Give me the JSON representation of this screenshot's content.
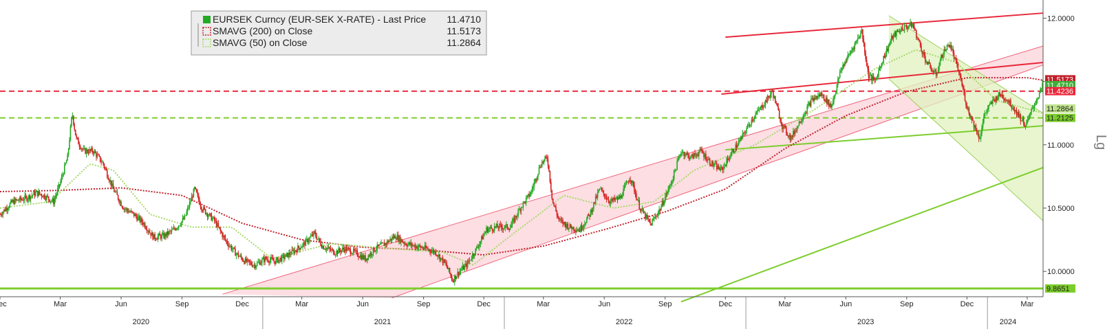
{
  "chart_data": {
    "type": "candlestick",
    "legend": {
      "placement": "top-left",
      "entries": [
        {
          "label": "EURSEK Curncy (EUR-SEK X-RATE) - Last Price",
          "value": "11.4710",
          "color": "#22aa22",
          "marker": "solid-square"
        },
        {
          "label": "SMAVG (200)  on Close",
          "value": "11.5173",
          "color": "#c0202a",
          "marker": "dotted-square"
        },
        {
          "label": "SMAVG (50)  on Close",
          "value": "11.2864",
          "color": "#a8d86a",
          "marker": "dotted-square"
        }
      ]
    },
    "y_axis": {
      "position": "right",
      "range": [
        9.8,
        12.1
      ],
      "ticks": [
        "10.0000",
        "10.5000",
        "11.0000",
        "11.5000",
        "12.0000"
      ],
      "tick_values": [
        10.0,
        10.5,
        11.0,
        11.5,
        12.0
      ]
    },
    "x_axis": {
      "start": "2019-12-01",
      "end": "2024-03-25",
      "month_ticks": [
        {
          "label": "Dec",
          "date": "2019-12-01"
        },
        {
          "label": "Mar",
          "date": "2020-03-01"
        },
        {
          "label": "Jun",
          "date": "2020-06-01"
        },
        {
          "label": "Sep",
          "date": "2020-09-01"
        },
        {
          "label": "Dec",
          "date": "2020-12-01"
        },
        {
          "label": "Mar",
          "date": "2021-03-01"
        },
        {
          "label": "Jun",
          "date": "2021-06-01"
        },
        {
          "label": "Sep",
          "date": "2021-09-01"
        },
        {
          "label": "Dec",
          "date": "2021-12-01"
        },
        {
          "label": "Mar",
          "date": "2022-03-01"
        },
        {
          "label": "Jun",
          "date": "2022-06-01"
        },
        {
          "label": "Sep",
          "date": "2022-09-01"
        },
        {
          "label": "Dec",
          "date": "2022-12-01"
        },
        {
          "label": "Mar",
          "date": "2023-03-01"
        },
        {
          "label": "Jun",
          "date": "2023-06-01"
        },
        {
          "label": "Sep",
          "date": "2023-09-01"
        },
        {
          "label": "Dec",
          "date": "2023-12-01"
        },
        {
          "label": "Mar",
          "date": "2024-03-01"
        }
      ],
      "year_labels": [
        {
          "label": "2020",
          "date": "2020-07-01"
        },
        {
          "label": "2021",
          "date": "2021-07-01"
        },
        {
          "label": "2022",
          "date": "2022-07-01"
        },
        {
          "label": "2023",
          "date": "2023-07-01"
        },
        {
          "label": "2024",
          "date": "2024-02-01"
        }
      ],
      "year_separators": [
        "2021-01-01",
        "2022-01-01",
        "2023-01-01",
        "2024-01-01"
      ]
    },
    "price_path": [
      [
        "2019-12-01",
        10.45
      ],
      [
        "2019-12-20",
        10.55
      ],
      [
        "2020-01-10",
        10.58
      ],
      [
        "2020-01-25",
        10.62
      ],
      [
        "2020-02-05",
        10.6
      ],
      [
        "2020-02-20",
        10.55
      ],
      [
        "2020-03-01",
        10.7
      ],
      [
        "2020-03-12",
        10.9
      ],
      [
        "2020-03-19",
        11.25
      ],
      [
        "2020-03-25",
        11.05
      ],
      [
        "2020-04-05",
        10.95
      ],
      [
        "2020-04-20",
        10.95
      ],
      [
        "2020-05-05",
        10.85
      ],
      [
        "2020-05-20",
        10.65
      ],
      [
        "2020-06-05",
        10.5
      ],
      [
        "2020-06-20",
        10.45
      ],
      [
        "2020-07-05",
        10.38
      ],
      [
        "2020-07-20",
        10.27
      ],
      [
        "2020-08-05",
        10.28
      ],
      [
        "2020-08-20",
        10.33
      ],
      [
        "2020-09-05",
        10.42
      ],
      [
        "2020-09-20",
        10.65
      ],
      [
        "2020-10-01",
        10.5
      ],
      [
        "2020-10-20",
        10.4
      ],
      [
        "2020-11-05",
        10.25
      ],
      [
        "2020-11-20",
        10.15
      ],
      [
        "2020-12-05",
        10.08
      ],
      [
        "2020-12-20",
        10.05
      ],
      [
        "2021-01-05",
        10.1
      ],
      [
        "2021-01-20",
        10.08
      ],
      [
        "2021-02-05",
        10.12
      ],
      [
        "2021-02-20",
        10.17
      ],
      [
        "2021-03-05",
        10.22
      ],
      [
        "2021-03-20",
        10.3
      ],
      [
        "2021-04-01",
        10.2
      ],
      [
        "2021-04-20",
        10.15
      ],
      [
        "2021-05-05",
        10.18
      ],
      [
        "2021-05-20",
        10.15
      ],
      [
        "2021-06-05",
        10.1
      ],
      [
        "2021-06-20",
        10.18
      ],
      [
        "2021-07-05",
        10.22
      ],
      [
        "2021-07-20",
        10.28
      ],
      [
        "2021-08-05",
        10.22
      ],
      [
        "2021-08-20",
        10.2
      ],
      [
        "2021-09-05",
        10.18
      ],
      [
        "2021-09-20",
        10.15
      ],
      [
        "2021-10-05",
        10.05
      ],
      [
        "2021-10-15",
        9.93
      ],
      [
        "2021-10-25",
        10.0
      ],
      [
        "2021-11-05",
        10.05
      ],
      [
        "2021-11-20",
        10.18
      ],
      [
        "2021-12-05",
        10.33
      ],
      [
        "2021-12-20",
        10.35
      ],
      [
        "2022-01-10",
        10.35
      ],
      [
        "2022-01-25",
        10.5
      ],
      [
        "2022-02-10",
        10.62
      ],
      [
        "2022-02-25",
        10.85
      ],
      [
        "2022-03-07",
        10.9
      ],
      [
        "2022-03-15",
        10.55
      ],
      [
        "2022-03-25",
        10.4
      ],
      [
        "2022-04-10",
        10.35
      ],
      [
        "2022-04-25",
        10.33
      ],
      [
        "2022-05-10",
        10.45
      ],
      [
        "2022-05-25",
        10.65
      ],
      [
        "2022-06-10",
        10.55
      ],
      [
        "2022-06-25",
        10.58
      ],
      [
        "2022-07-10",
        10.75
      ],
      [
        "2022-07-25",
        10.5
      ],
      [
        "2022-08-10",
        10.37
      ],
      [
        "2022-08-25",
        10.5
      ],
      [
        "2022-09-10",
        10.7
      ],
      [
        "2022-09-25",
        10.95
      ],
      [
        "2022-10-10",
        10.9
      ],
      [
        "2022-10-25",
        10.95
      ],
      [
        "2022-11-10",
        10.85
      ],
      [
        "2022-11-25",
        10.8
      ],
      [
        "2022-12-10",
        10.93
      ],
      [
        "2022-12-25",
        11.05
      ],
      [
        "2023-01-10",
        11.2
      ],
      [
        "2023-01-25",
        11.3
      ],
      [
        "2023-02-10",
        11.42
      ],
      [
        "2023-02-25",
        11.15
      ],
      [
        "2023-03-10",
        11.05
      ],
      [
        "2023-03-25",
        11.2
      ],
      [
        "2023-04-10",
        11.35
      ],
      [
        "2023-04-25",
        11.4
      ],
      [
        "2023-05-10",
        11.3
      ],
      [
        "2023-05-25",
        11.6
      ],
      [
        "2023-06-10",
        11.75
      ],
      [
        "2023-06-25",
        11.9
      ],
      [
        "2023-07-05",
        11.55
      ],
      [
        "2023-07-15",
        11.5
      ],
      [
        "2023-07-25",
        11.65
      ],
      [
        "2023-08-10",
        11.85
      ],
      [
        "2023-08-25",
        11.92
      ],
      [
        "2023-09-10",
        11.95
      ],
      [
        "2023-09-20",
        11.8
      ],
      [
        "2023-10-01",
        11.65
      ],
      [
        "2023-10-15",
        11.55
      ],
      [
        "2023-10-25",
        11.72
      ],
      [
        "2023-11-05",
        11.8
      ],
      [
        "2023-11-20",
        11.55
      ],
      [
        "2023-12-01",
        11.3
      ],
      [
        "2023-12-10",
        11.18
      ],
      [
        "2023-12-20",
        11.05
      ],
      [
        "2023-12-28",
        11.25
      ],
      [
        "2024-01-10",
        11.35
      ],
      [
        "2024-01-20",
        11.4
      ],
      [
        "2024-02-01",
        11.35
      ],
      [
        "2024-02-15",
        11.25
      ],
      [
        "2024-02-28",
        11.15
      ],
      [
        "2024-03-10",
        11.3
      ],
      [
        "2024-03-25",
        11.47
      ]
    ],
    "sma200_path": [
      [
        "2019-12-01",
        10.63
      ],
      [
        "2020-03-01",
        10.64
      ],
      [
        "2020-06-01",
        10.66
      ],
      [
        "2020-09-01",
        10.6
      ],
      [
        "2020-12-01",
        10.38
      ],
      [
        "2021-03-01",
        10.25
      ],
      [
        "2021-06-01",
        10.19
      ],
      [
        "2021-09-01",
        10.17
      ],
      [
        "2021-12-01",
        10.13
      ],
      [
        "2022-03-01",
        10.2
      ],
      [
        "2022-06-01",
        10.33
      ],
      [
        "2022-09-01",
        10.47
      ],
      [
        "2022-12-01",
        10.65
      ],
      [
        "2023-03-01",
        10.97
      ],
      [
        "2023-06-01",
        11.23
      ],
      [
        "2023-09-01",
        11.42
      ],
      [
        "2023-12-01",
        11.53
      ],
      [
        "2024-03-01",
        11.53
      ],
      [
        "2024-03-25",
        11.51
      ]
    ],
    "sma50_path": [
      [
        "2019-12-01",
        10.5
      ],
      [
        "2020-02-15",
        10.55
      ],
      [
        "2020-04-15",
        10.85
      ],
      [
        "2020-05-20",
        10.8
      ],
      [
        "2020-07-15",
        10.45
      ],
      [
        "2020-09-15",
        10.35
      ],
      [
        "2020-11-15",
        10.35
      ],
      [
        "2021-01-15",
        10.1
      ],
      [
        "2021-04-15",
        10.22
      ],
      [
        "2021-07-15",
        10.18
      ],
      [
        "2021-10-01",
        10.15
      ],
      [
        "2021-11-15",
        10.05
      ],
      [
        "2022-01-15",
        10.3
      ],
      [
        "2022-04-01",
        10.6
      ],
      [
        "2022-06-15",
        10.5
      ],
      [
        "2022-08-15",
        10.55
      ],
      [
        "2022-10-15",
        10.8
      ],
      [
        "2023-01-15",
        11.0
      ],
      [
        "2023-04-15",
        11.28
      ],
      [
        "2023-07-15",
        11.6
      ],
      [
        "2023-09-15",
        11.75
      ],
      [
        "2023-11-15",
        11.65
      ],
      [
        "2024-01-15",
        11.35
      ],
      [
        "2024-03-25",
        11.25
      ]
    ],
    "horizontal_lines": [
      {
        "value": 11.4236,
        "style": "dashed",
        "color": "#e8283a"
      },
      {
        "value": 11.2125,
        "style": "dashed",
        "color": "#7ccd2c"
      },
      {
        "value": 9.8651,
        "style": "solid",
        "color": "#7ccd2c"
      }
    ],
    "trend_lines": [
      {
        "color": "#e8283a",
        "from": [
          "2022-12-01",
          11.85
        ],
        "to": [
          "2024-03-25",
          12.04
        ]
      },
      {
        "color": "#e8283a",
        "from": [
          "2022-11-25",
          11.4
        ],
        "to": [
          "2024-03-25",
          11.65
        ]
      },
      {
        "color": "#7ccd2c",
        "from": [
          "2022-12-01",
          10.96
        ],
        "to": [
          "2024-03-25",
          11.15
        ]
      },
      {
        "color": "#7ccd2c",
        "from": [
          "2022-09-25",
          9.76
        ],
        "to": [
          "2024-03-25",
          10.82
        ]
      }
    ],
    "channels": [
      {
        "name": "rising",
        "fill": "#fbd3da",
        "edge": "#f0677c",
        "upper": [
          [
            "2020-11-01",
            9.82
          ],
          [
            "2024-03-25",
            11.78
          ]
        ],
        "lower": [
          [
            "2021-07-15",
            9.79
          ],
          [
            "2024-03-25",
            11.63
          ]
        ]
      },
      {
        "name": "falling",
        "fill": "#e0f2bf",
        "edge": "#9ad05a",
        "upper": [
          [
            "2023-08-05",
            12.02
          ],
          [
            "2024-03-25",
            11.25
          ]
        ],
        "lower": [
          [
            "2023-08-05",
            11.52
          ],
          [
            "2024-03-25",
            10.4
          ]
        ]
      }
    ],
    "price_badges": [
      {
        "value": 11.5173,
        "text": "11.5173",
        "bg": "#c0202a",
        "fg": "#ffffff"
      },
      {
        "value": 11.471,
        "text": "11.4710",
        "bg": "#3fb03a",
        "fg": "#ffffff"
      },
      {
        "value": 11.4236,
        "text": "11.4236",
        "bg": "#e8283a",
        "fg": "#ffffff"
      },
      {
        "value": 11.2864,
        "text": "11.2864",
        "bg": "#bfe28c",
        "fg": "#222222"
      },
      {
        "value": 11.2125,
        "text": "11.2125",
        "bg": "#7ccd2c",
        "fg": "#222222"
      },
      {
        "value": 9.8651,
        "text": "9.8651",
        "bg": "#7ccd2c",
        "fg": "#222222"
      }
    ],
    "side_label": "Lg"
  }
}
